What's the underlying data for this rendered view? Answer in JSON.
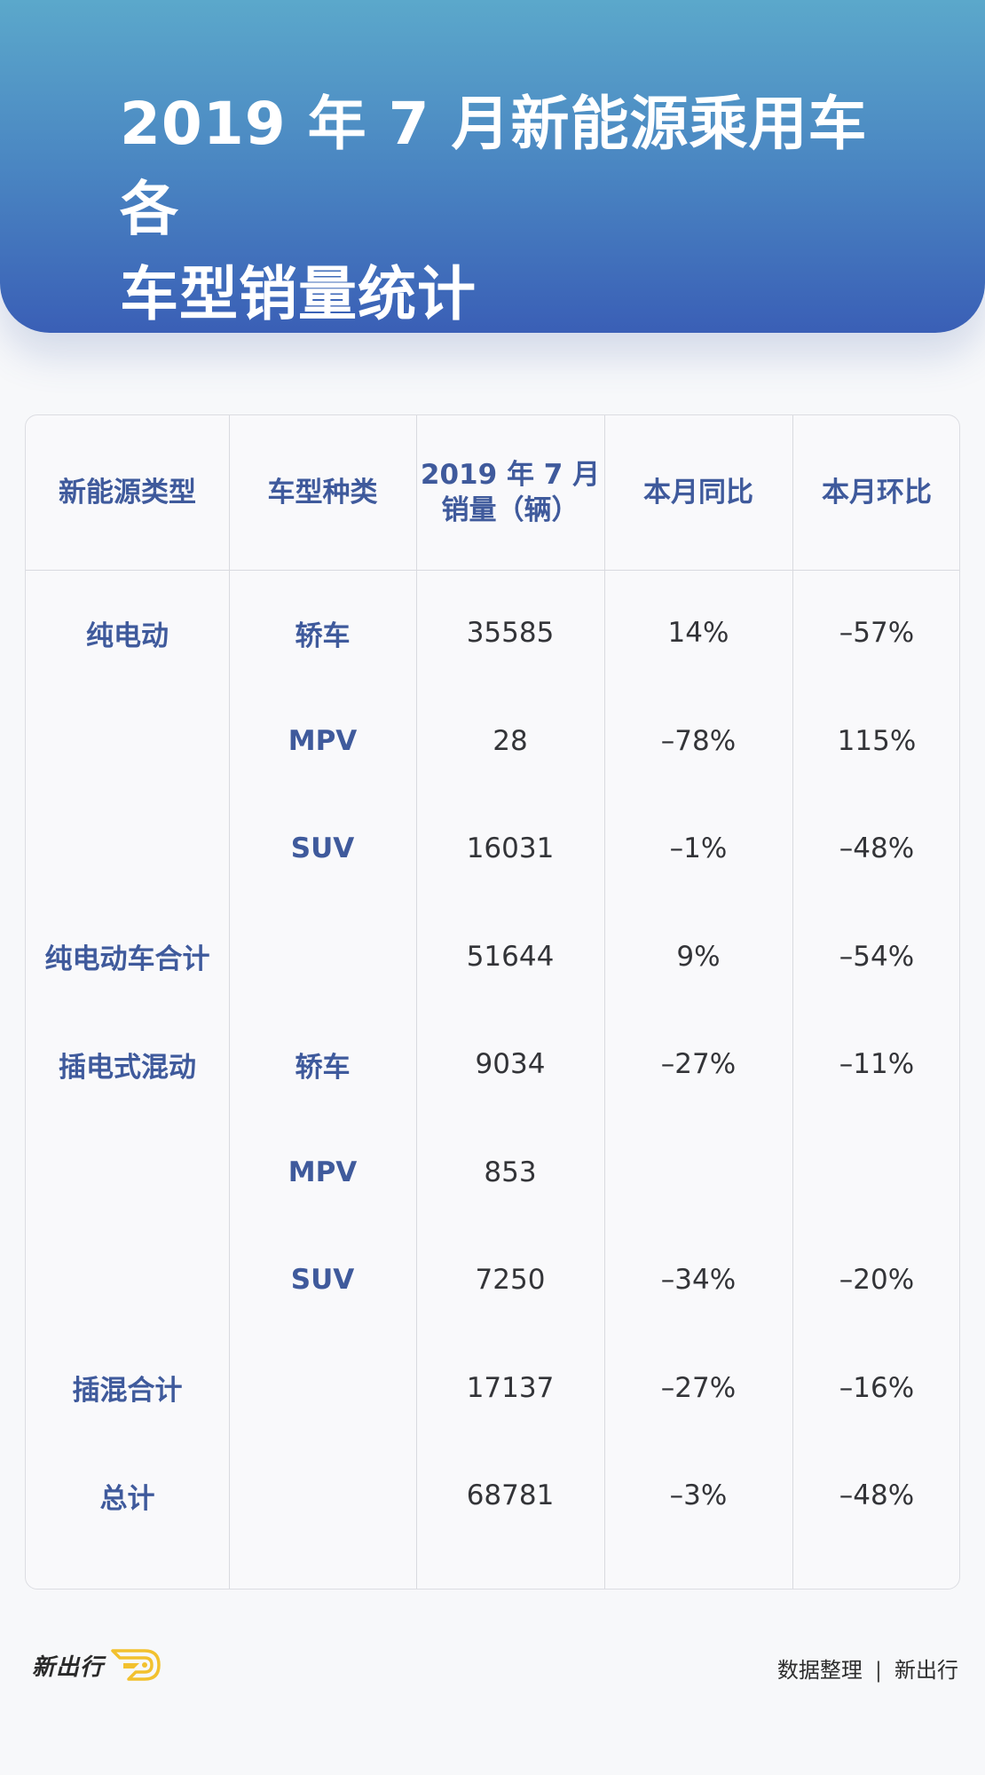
{
  "header": {
    "title_line1": "2019 年 7 月新能源乘用车各",
    "title_line2": "车型销量统计"
  },
  "table": {
    "columns": [
      "新能源类型",
      "车型种类",
      "2019 年 7 月",
      "本月同比",
      "本月环比"
    ],
    "column3_line2": "销量（辆）",
    "rows": [
      {
        "type": "纯电动",
        "model": "轿车",
        "sales": "35585",
        "yoy": "14%",
        "mom": "–57%"
      },
      {
        "type": "",
        "model": "MPV",
        "sales": "28",
        "yoy": "–78%",
        "mom": "115%"
      },
      {
        "type": "",
        "model": "SUV",
        "sales": "16031",
        "yoy": "–1%",
        "mom": "–48%"
      },
      {
        "type": "纯电动车合计",
        "model": "",
        "sales": "51644",
        "yoy": "9%",
        "mom": "–54%"
      },
      {
        "type": "插电式混动",
        "model": "轿车",
        "sales": "9034",
        "yoy": "–27%",
        "mom": "–11%"
      },
      {
        "type": "",
        "model": "MPV",
        "sales": "853",
        "yoy": "",
        "mom": ""
      },
      {
        "type": "",
        "model": "SUV",
        "sales": "7250",
        "yoy": "–34%",
        "mom": "–20%"
      },
      {
        "type": "插混合计",
        "model": "",
        "sales": "17137",
        "yoy": "–27%",
        "mom": "–16%"
      },
      {
        "type": "总计",
        "model": "",
        "sales": "68781",
        "yoy": "–3%",
        "mom": "–48%"
      }
    ]
  },
  "footer": {
    "logo_text": "新出行",
    "logo_icon": "wing-badge-icon",
    "credit_label": "数据整理",
    "separator": "|",
    "credit_name": "新出行"
  },
  "colors": {
    "header_gradient_top": "#5ba8cb",
    "header_gradient_bottom": "#3a5fb6",
    "label_blue": "#3f5a9c",
    "number_text": "#333438",
    "logo_accent": "#f2c12e"
  }
}
